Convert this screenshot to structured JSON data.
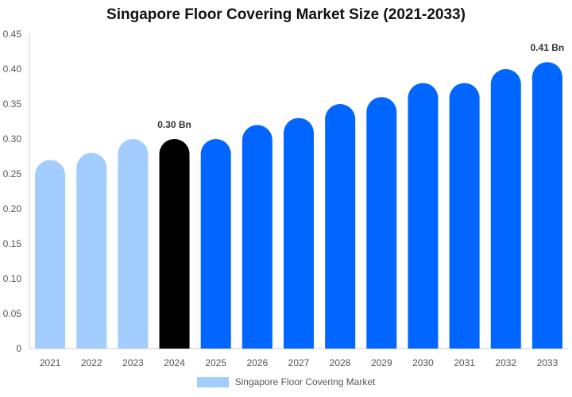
{
  "chart_data": {
    "type": "bar",
    "title": "Singapore Floor Covering Market Size (2021-2033)",
    "xlabel": "",
    "ylabel": "",
    "ylim": [
      0,
      0.45
    ],
    "yticks": [
      "0",
      "0.05",
      "0.10",
      "0.15",
      "0.20",
      "0.25",
      "0.30",
      "0.35",
      "0.40",
      "0.45"
    ],
    "ytick_values": [
      0,
      0.05,
      0.1,
      0.15,
      0.2,
      0.25,
      0.3,
      0.35,
      0.4,
      0.45
    ],
    "categories": [
      "2021",
      "2022",
      "2023",
      "2024",
      "2025",
      "2026",
      "2027",
      "2028",
      "2029",
      "2030",
      "2031",
      "2032",
      "2033"
    ],
    "series": [
      {
        "name": "Singapore Floor Covering Market",
        "values": [
          0.27,
          0.28,
          0.3,
          0.3,
          0.3,
          0.32,
          0.33,
          0.35,
          0.36,
          0.38,
          0.38,
          0.4,
          0.41
        ]
      }
    ],
    "bar_colors": [
      "#a3cdfd",
      "#a3cdfd",
      "#a3cdfd",
      "#000000",
      "#0066ff",
      "#0066ff",
      "#0066ff",
      "#0066ff",
      "#0066ff",
      "#0066ff",
      "#0066ff",
      "#0066ff",
      "#0066ff"
    ],
    "data_labels": [
      {
        "category": "2024",
        "text": "0.30 Bn"
      },
      {
        "category": "2033",
        "text": "0.41 Bn"
      }
    ],
    "legend": {
      "position": "bottom",
      "label": "Singapore Floor Covering Market",
      "color": "#a3cdfd"
    },
    "grid": false
  }
}
